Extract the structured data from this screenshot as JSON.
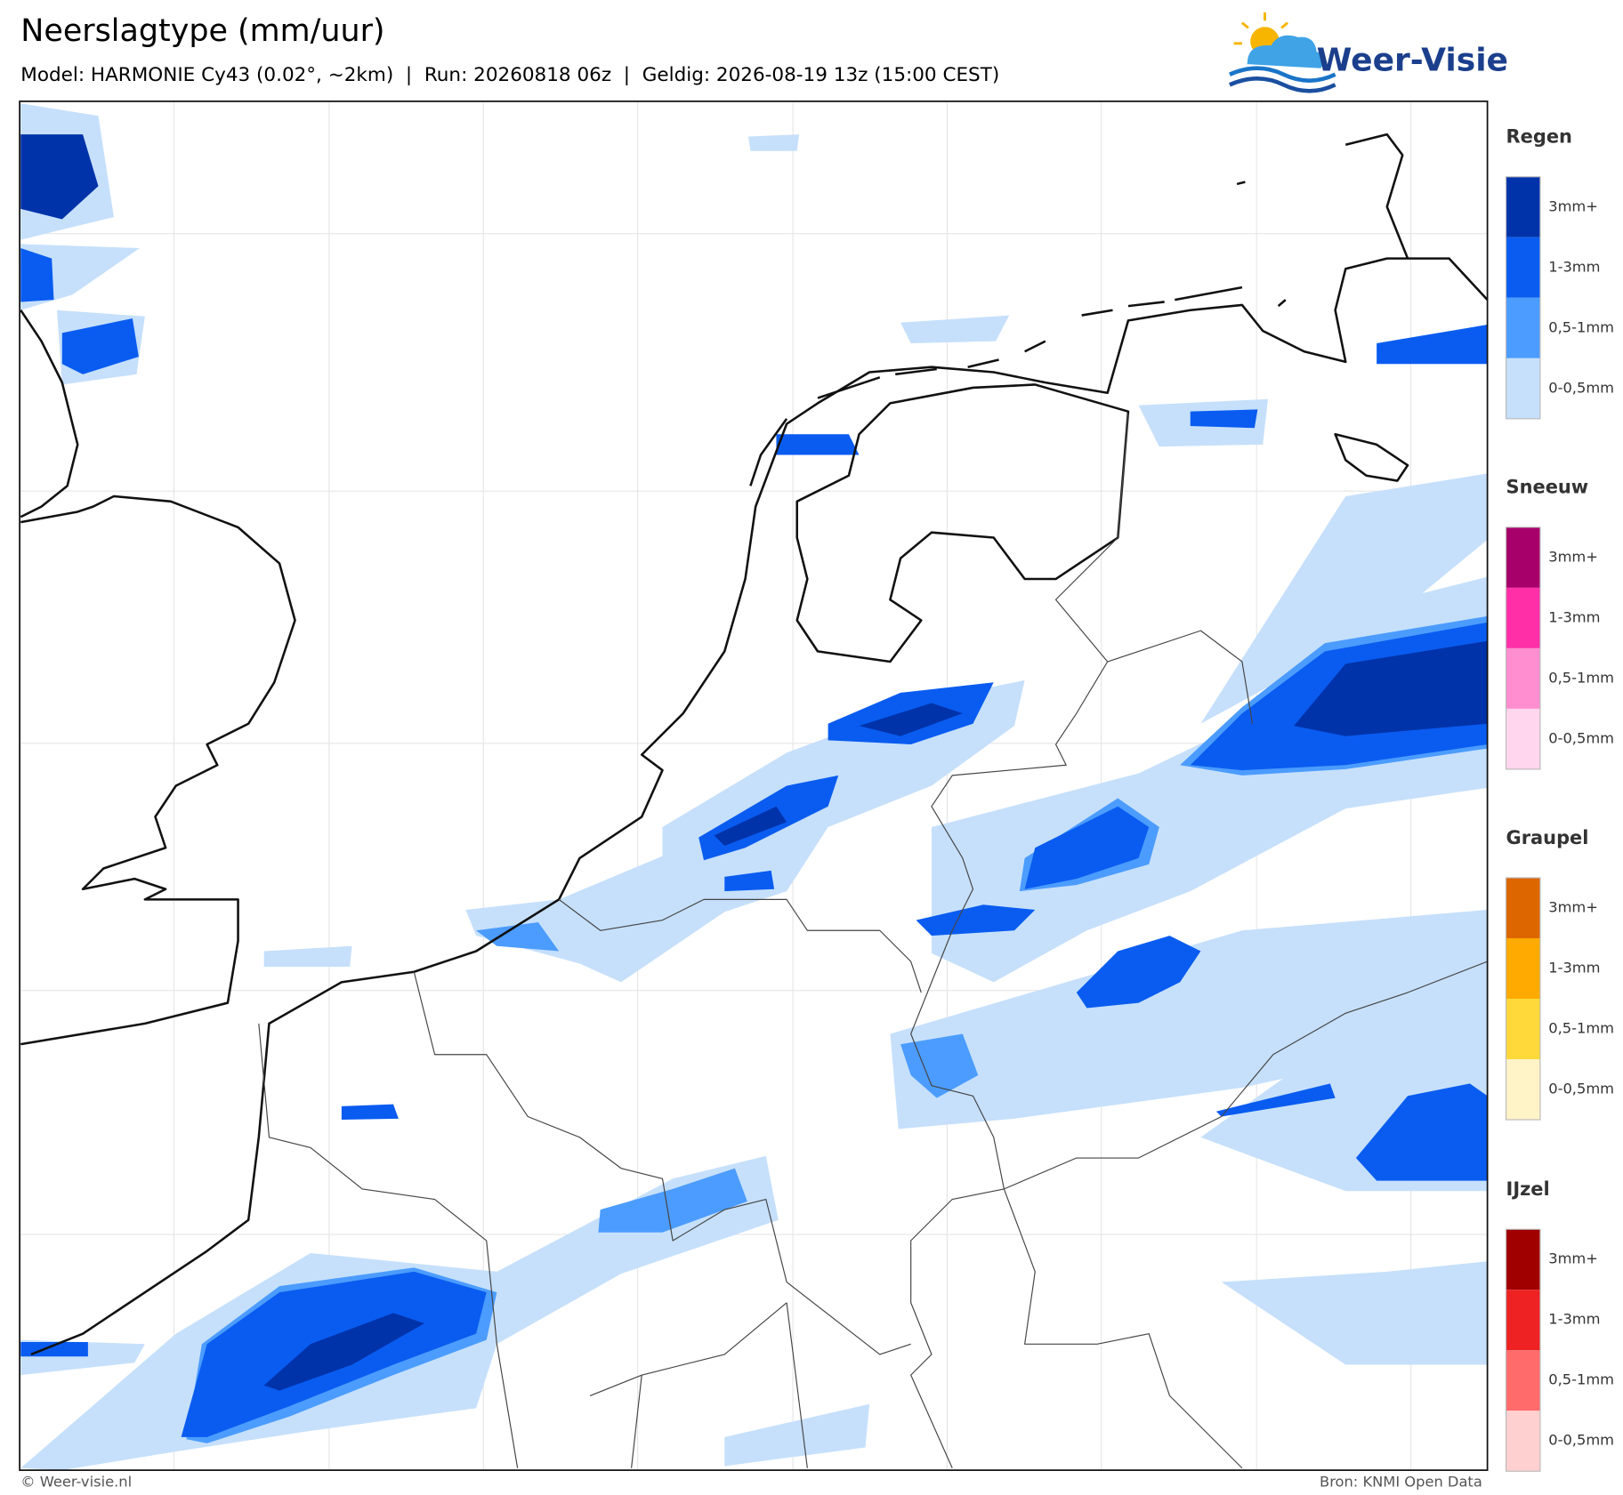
{
  "header": {
    "title": "Neerslagtype (mm/uur)",
    "subtitle": "Model: HARMONIE Cy43 (0.02°, ~2km)  |  Run: 20260818 06z  |  Geldig: 2026-08-19 13z (15:00 CEST)",
    "logo": "Weer-Visie"
  },
  "legend": [
    {
      "title": "Regen",
      "items": [
        {
          "label": "3mm+",
          "color": "#0033aa"
        },
        {
          "label": "1-3mm",
          "color": "#0a5cf0"
        },
        {
          "label": "0,5-1mm",
          "color": "#4c9cff"
        },
        {
          "label": "0-0,5mm",
          "color": "#c6e0fb"
        }
      ]
    },
    {
      "title": "Sneeuw",
      "items": [
        {
          "label": "3mm+",
          "color": "#a8006b"
        },
        {
          "label": "1-3mm",
          "color": "#ff2fa8"
        },
        {
          "label": "0,5-1mm",
          "color": "#ff8ed0"
        },
        {
          "label": "0-0,5mm",
          "color": "#ffd6ee"
        }
      ]
    },
    {
      "title": "Graupel",
      "items": [
        {
          "label": "3mm+",
          "color": "#dd6600"
        },
        {
          "label": "1-3mm",
          "color": "#ffaa00"
        },
        {
          "label": "0,5-1mm",
          "color": "#ffd83a"
        },
        {
          "label": "0-0,5mm",
          "color": "#fff3c8"
        }
      ]
    },
    {
      "title": "IJzel",
      "items": [
        {
          "label": "3mm+",
          "color": "#a00000"
        },
        {
          "label": "1-3mm",
          "color": "#ee2222"
        },
        {
          "label": "0,5-1mm",
          "color": "#ff6a6a"
        },
        {
          "label": "0-0,5mm",
          "color": "#ffd0d0"
        }
      ]
    }
  ],
  "footer": {
    "credit": "© Weer-visie.nl",
    "source": "Bron: KNMI Open Data"
  }
}
